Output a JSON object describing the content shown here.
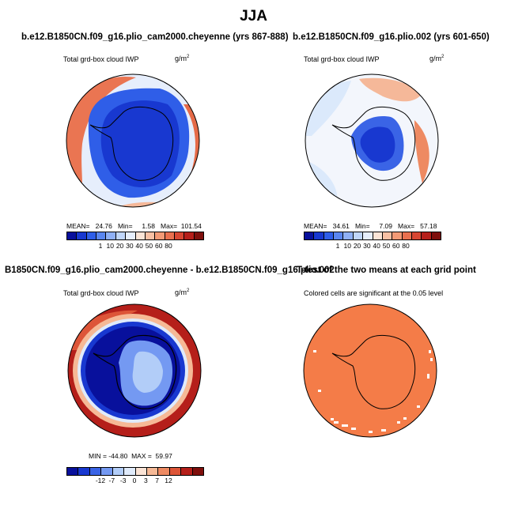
{
  "figure": {
    "title": "JJA"
  },
  "panels": [
    {
      "title": "b.e12.B1850CN.f09_g16.plio_cam2000.cheyenne (yrs 867-888)",
      "subtitle": "Total grd-box cloud IWP",
      "units": "g/m",
      "units_sup": "2",
      "stats": "MEAN=   24.76   Min=     1.58   Max=  101.54"
    },
    {
      "title": "b.e12.B1850CN.f09_g16.plio.002 (yrs 601-650)",
      "subtitle": "Total grd-box cloud IWP",
      "units": "g/m",
      "units_sup": "2",
      "stats": "MEAN=   34.61   Min=     7.09   Max=   57.18"
    },
    {
      "title": "B1850CN.f09_g16.plio_cam2000.cheyenne - b.e12.B1850CN.f09_g16.plio.002",
      "subtitle": "Total grd-box cloud IWP",
      "units": "g/m",
      "units_sup": "2",
      "stats": "MIN = -44.80  MAX =  59.97"
    },
    {
      "title": "T-test of the two means at each grid point",
      "subtitle": "Colored cells are significant at the 0.05 level"
    }
  ],
  "colorbars": {
    "absolute": {
      "labels": [
        "1",
        "10",
        "20",
        "30",
        "40",
        "50",
        "60",
        "80"
      ],
      "colors": [
        "#08109c",
        "#1838d0",
        "#2f5ee8",
        "#5a86f0",
        "#8fb0f6",
        "#c0d6fa",
        "#e6eefc",
        "#fbe4d6",
        "#f8c0a4",
        "#f39a76",
        "#e9704f",
        "#d74632",
        "#b51f1a",
        "#7f0f0c"
      ]
    },
    "difference": {
      "labels": [
        "-12",
        "-7",
        "-3",
        "0",
        "3",
        "7",
        "12"
      ],
      "colors": [
        "#08109c",
        "#1838d0",
        "#3a64e6",
        "#7499f2",
        "#b2cdf8",
        "#e0ebfb",
        "#fbe4d6",
        "#f6b996",
        "#ee8a62",
        "#dd5538",
        "#b51f1a",
        "#7f0f0c"
      ]
    }
  },
  "legend_colors": {
    "ocean_light": "#dbe9fb",
    "significant": "#f47c48",
    "deep_blue": "#1d42cc",
    "red": "#d5452f"
  }
}
